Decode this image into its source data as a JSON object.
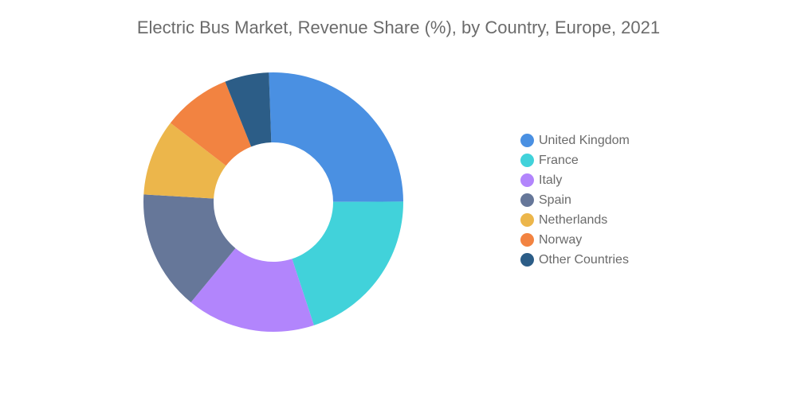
{
  "title": "Electric Bus Market, Revenue Share (%), by Country, Europe, 2021",
  "chart_data": {
    "type": "pie",
    "donut": true,
    "title": "Electric Bus Market, Revenue Share (%), by Country, Europe, 2021",
    "legend_position": "right",
    "categories": [
      "United Kingdom",
      "France",
      "Italy",
      "Spain",
      "Netherlands",
      "Norway",
      "Other Countries"
    ],
    "values": [
      25.5,
      20,
      16,
      15,
      9.5,
      8.5,
      5.5
    ],
    "colors": [
      "#4a90e2",
      "#41d2da",
      "#b285fc",
      "#667799",
      "#ecb64b",
      "#f28341",
      "#2c5d87"
    ]
  }
}
